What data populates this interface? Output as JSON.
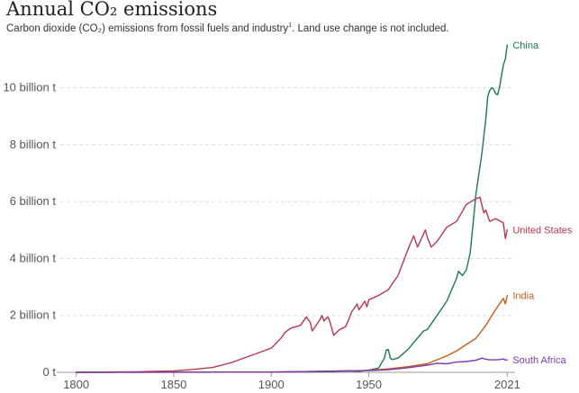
{
  "header": {
    "title": "Annual CO₂ emissions",
    "subtitle": "Carbon dioxide (CO₂) emissions from fossil fuels and industry",
    "subtitle_footnote": "1",
    "subtitle_tail": ". Land use change is not included."
  },
  "chart_data": {
    "type": "line",
    "title": "Annual CO₂ emissions",
    "subtitle": "Carbon dioxide (CO₂) emissions from fossil fuels and industry¹. Land use change is not included.",
    "xlabel": "",
    "ylabel": "",
    "xlim": [
      1790,
      2025
    ],
    "ylim": [
      0,
      11.5
    ],
    "grid": "horizontal dashed",
    "x_ticks": [
      1800,
      1850,
      1900,
      1950,
      2021
    ],
    "x_tick_labels": [
      "1800",
      "1850",
      "1900",
      "1950",
      "2021"
    ],
    "y_ticks": [
      0,
      2,
      4,
      6,
      8,
      10
    ],
    "y_tick_labels": [
      "0 t",
      "2 billion t",
      "4 billion t",
      "6 billion t",
      "8 billion t",
      "10 billion t"
    ],
    "legend": "line-end labels",
    "series": [
      {
        "name": "China",
        "color": "#1b7a4f",
        "x": [
          1800,
          1900,
          1930,
          1940,
          1945,
          1950,
          1955,
          1958,
          1959,
          1960,
          1961,
          1962,
          1965,
          1970,
          1975,
          1978,
          1980,
          1985,
          1990,
          1995,
          1996,
          1998,
          2000,
          2002,
          2005,
          2008,
          2010,
          2011,
          2012,
          2013,
          2014,
          2015,
          2016,
          2017,
          2018,
          2019,
          2020,
          2021
        ],
        "values": [
          0,
          0.01,
          0.02,
          0.05,
          0.03,
          0.08,
          0.15,
          0.5,
          0.78,
          0.8,
          0.5,
          0.45,
          0.5,
          0.8,
          1.2,
          1.45,
          1.5,
          2.0,
          2.5,
          3.3,
          3.55,
          3.4,
          3.6,
          4.2,
          6.3,
          7.7,
          8.9,
          9.7,
          9.9,
          10.0,
          9.95,
          9.8,
          9.75,
          10.0,
          10.4,
          10.8,
          11.0,
          11.5
        ]
      },
      {
        "name": "United States",
        "color": "#b7384e",
        "x": [
          1800,
          1830,
          1850,
          1860,
          1870,
          1880,
          1890,
          1900,
          1905,
          1907,
          1910,
          1915,
          1918,
          1920,
          1921,
          1925,
          1926,
          1927,
          1929,
          1930,
          1932,
          1935,
          1938,
          1940,
          1941,
          1944,
          1945,
          1946,
          1948,
          1949,
          1950,
          1955,
          1960,
          1965,
          1970,
          1973,
          1975,
          1979,
          1980,
          1982,
          1985,
          1990,
          1995,
          2000,
          2005,
          2007,
          2009,
          2010,
          2012,
          2015,
          2019,
          2020,
          2021
        ],
        "values": [
          0.002,
          0.02,
          0.05,
          0.1,
          0.17,
          0.35,
          0.6,
          0.85,
          1.2,
          1.4,
          1.55,
          1.65,
          1.95,
          1.75,
          1.45,
          1.85,
          2.0,
          1.8,
          1.95,
          1.8,
          1.3,
          1.5,
          1.6,
          1.9,
          2.1,
          2.4,
          2.2,
          2.3,
          2.5,
          2.3,
          2.55,
          2.7,
          2.9,
          3.4,
          4.3,
          4.8,
          4.4,
          5.0,
          4.75,
          4.4,
          4.6,
          5.1,
          5.3,
          5.9,
          6.1,
          6.15,
          5.6,
          5.7,
          5.3,
          5.4,
          5.25,
          4.7,
          5.0
        ]
      },
      {
        "name": "India",
        "color": "#c95b1a",
        "x": [
          1800,
          1900,
          1920,
          1940,
          1950,
          1960,
          1970,
          1980,
          1990,
          1995,
          2000,
          2005,
          2010,
          2015,
          2019,
          2020,
          2021
        ],
        "values": [
          0,
          0.01,
          0.03,
          0.05,
          0.07,
          0.12,
          0.2,
          0.3,
          0.58,
          0.75,
          0.98,
          1.2,
          1.65,
          2.2,
          2.6,
          2.4,
          2.7
        ]
      },
      {
        "name": "South Africa",
        "color": "#7a3bb0",
        "x": [
          1800,
          1900,
          1920,
          1940,
          1950,
          1960,
          1970,
          1980,
          1985,
          1990,
          1995,
          2000,
          2005,
          2008,
          2010,
          2012,
          2015,
          2017,
          2019,
          2020,
          2021
        ],
        "values": [
          0,
          0.01,
          0.03,
          0.05,
          0.06,
          0.09,
          0.16,
          0.25,
          0.32,
          0.3,
          0.36,
          0.38,
          0.43,
          0.5,
          0.46,
          0.44,
          0.44,
          0.45,
          0.47,
          0.43,
          0.44
        ]
      }
    ]
  }
}
